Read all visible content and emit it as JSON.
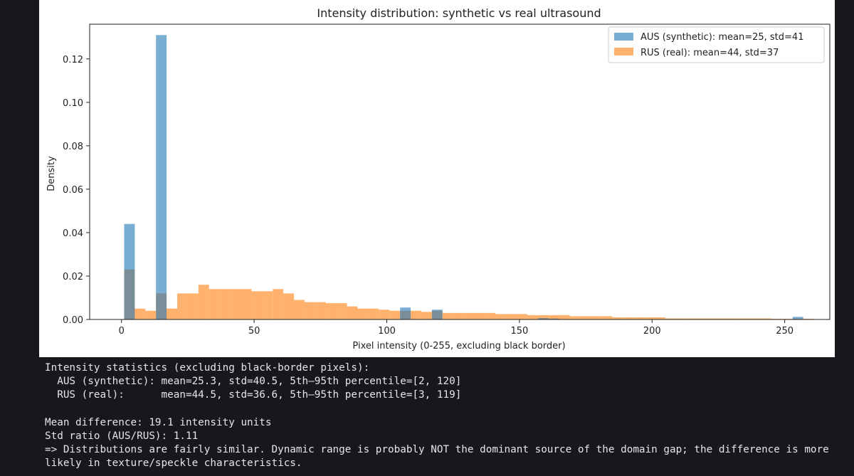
{
  "chart_data": {
    "type": "histogram",
    "title": "Intensity distribution: synthetic vs real ultrasound",
    "xlabel": "Pixel intensity (0-255, excluding black border)",
    "ylabel": "Density",
    "xlim": [
      -12,
      267
    ],
    "ylim": [
      0,
      0.136
    ],
    "xticks": [
      0,
      50,
      100,
      150,
      200,
      250
    ],
    "yticks": [
      0.0,
      0.02,
      0.04,
      0.06,
      0.08,
      0.1,
      0.12
    ],
    "ytick_labels": [
      "0.00",
      "0.02",
      "0.04",
      "0.06",
      "0.08",
      "0.10",
      "0.12"
    ],
    "legend_position": "upper right",
    "bin_edges_start": 1,
    "bin_width": 4,
    "series": [
      {
        "name": "AUS (synthetic): mean=25, std=41",
        "color": "#1f77b4",
        "alpha": 0.6,
        "values": [
          0.044,
          0.0,
          0.0,
          0.131,
          0.0,
          0.0,
          0.0,
          0.0,
          0.0,
          0.0,
          0.0,
          0.0,
          0.0,
          0.0,
          0.0,
          0.0,
          0.0,
          0.0,
          0.0,
          0.0,
          0.0,
          0.0,
          0.0,
          0.0,
          0.0,
          0.0,
          0.0,
          0.0,
          0.0,
          0.0,
          0.0,
          0.0,
          0.0,
          0.0,
          0.0,
          0.0,
          0.0,
          0.0,
          0.0,
          0.0,
          0.0,
          0.0,
          0.0,
          0.0,
          0.0,
          0.0,
          0.0,
          0.0,
          0.0,
          0.0,
          0.0,
          0.0,
          0.0,
          0.0,
          0.0,
          0.0,
          0.0,
          0.0,
          0.0,
          0.0,
          0.0,
          0.0,
          0.0,
          0.0,
          0.0
        ]
      },
      {
        "name": "RUS (real): mean=44, std=37",
        "color": "#ff7f0e",
        "alpha": 0.6,
        "values": [
          0.023,
          0.005,
          0.004,
          0.012,
          0.005,
          0.012,
          0.012,
          0.016,
          0.014,
          0.014,
          0.014,
          0.014,
          0.013,
          0.013,
          0.014,
          0.012,
          0.009,
          0.008,
          0.008,
          0.0075,
          0.0075,
          0.006,
          0.005,
          0.005,
          0.0045,
          0.004,
          0.004,
          0.004,
          0.0035,
          0.004,
          0.003,
          0.003,
          0.003,
          0.003,
          0.003,
          0.0025,
          0.0025,
          0.0025,
          0.002,
          0.002,
          0.002,
          0.002,
          0.0015,
          0.0015,
          0.0015,
          0.0015,
          0.001,
          0.001,
          0.001,
          0.001,
          0.001,
          0.0005,
          0.0005,
          0.0005,
          0.0005,
          0.0005,
          0.0005,
          0.0005,
          0.0005,
          0.0005,
          0.0005,
          0.0003,
          0.0003,
          0.0003,
          0.0003
        ]
      }
    ],
    "sparse_bars": [
      {
        "series": 0,
        "x": 105,
        "value": 0.0055
      },
      {
        "series": 0,
        "x": 117,
        "value": 0.0045
      },
      {
        "series": 0,
        "x": 157,
        "value": 0.0006
      },
      {
        "series": 0,
        "x": 161,
        "value": 0.0004
      },
      {
        "series": 0,
        "x": 253,
        "value": 0.0012
      }
    ]
  },
  "console": {
    "header": "Intensity statistics (excluding black-border pixels):",
    "aus_line": "  AUS (synthetic): mean=25.3, std=40.5, 5th–95th percentile=[2, 120]",
    "rus_line": "  RUS (real):      mean=44.5, std=36.6, 5th–95th percentile=[3, 119]",
    "mean_diff": "Mean difference: 19.1 intensity units",
    "std_ratio": "Std ratio (AUS/RUS): 1.11",
    "conclusion": "=> Distributions are fairly similar. Dynamic range is probably NOT the dominant source of the domain gap; the difference is more likely in texture/speckle characteristics."
  }
}
